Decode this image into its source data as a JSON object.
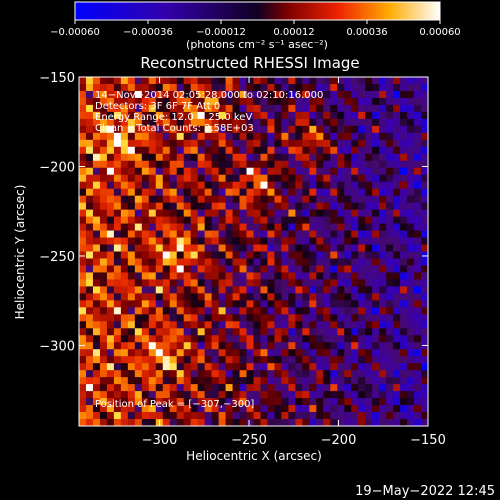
{
  "chart_data": {
    "type": "heatmap",
    "title": "Reconstructed RHESSI Image",
    "xlabel": "Heliocentric X (arcsec)",
    "ylabel": "Heliocentric Y (arcsec)",
    "xlim": [
      -345,
      -150
    ],
    "ylim": [
      -345,
      -150
    ],
    "x_ticks": [
      -300,
      -250,
      -200,
      -150
    ],
    "x_tick_labels": [
      "−300",
      "−250",
      "−200",
      "−150"
    ],
    "y_ticks": [
      -300,
      -250,
      -200,
      -150
    ],
    "y_tick_labels": [
      "−300",
      "−250",
      "−200",
      "−150"
    ],
    "colorbar": {
      "min": -0.0006,
      "max": 0.0006,
      "ticks": [
        -0.0006,
        -0.00036,
        -0.00012,
        0.00012,
        0.00036,
        0.0006
      ],
      "tick_labels": [
        "−0.00060",
        "−0.00036",
        "−0.00012",
        "0.00012",
        "0.00036",
        "0.00060"
      ],
      "units_label": "(photons cm⁻² s⁻¹ asec⁻²)"
    },
    "annotations": [
      "14−Nov−2014 02:05:28.000 to 02:10:16.000",
      "Detectors: 3F 6F 7F  Att 0",
      "Energy Range: 12.0 − 25.0 keV",
      "Clean    Total Counts: 2.58E+03"
    ],
    "peak_label": "Position of Peak = [−307,−300]",
    "peak": [
      -307,
      -300
    ],
    "grid": false
  },
  "footer": {
    "timestamp": "19−May−2022 12:45"
  }
}
